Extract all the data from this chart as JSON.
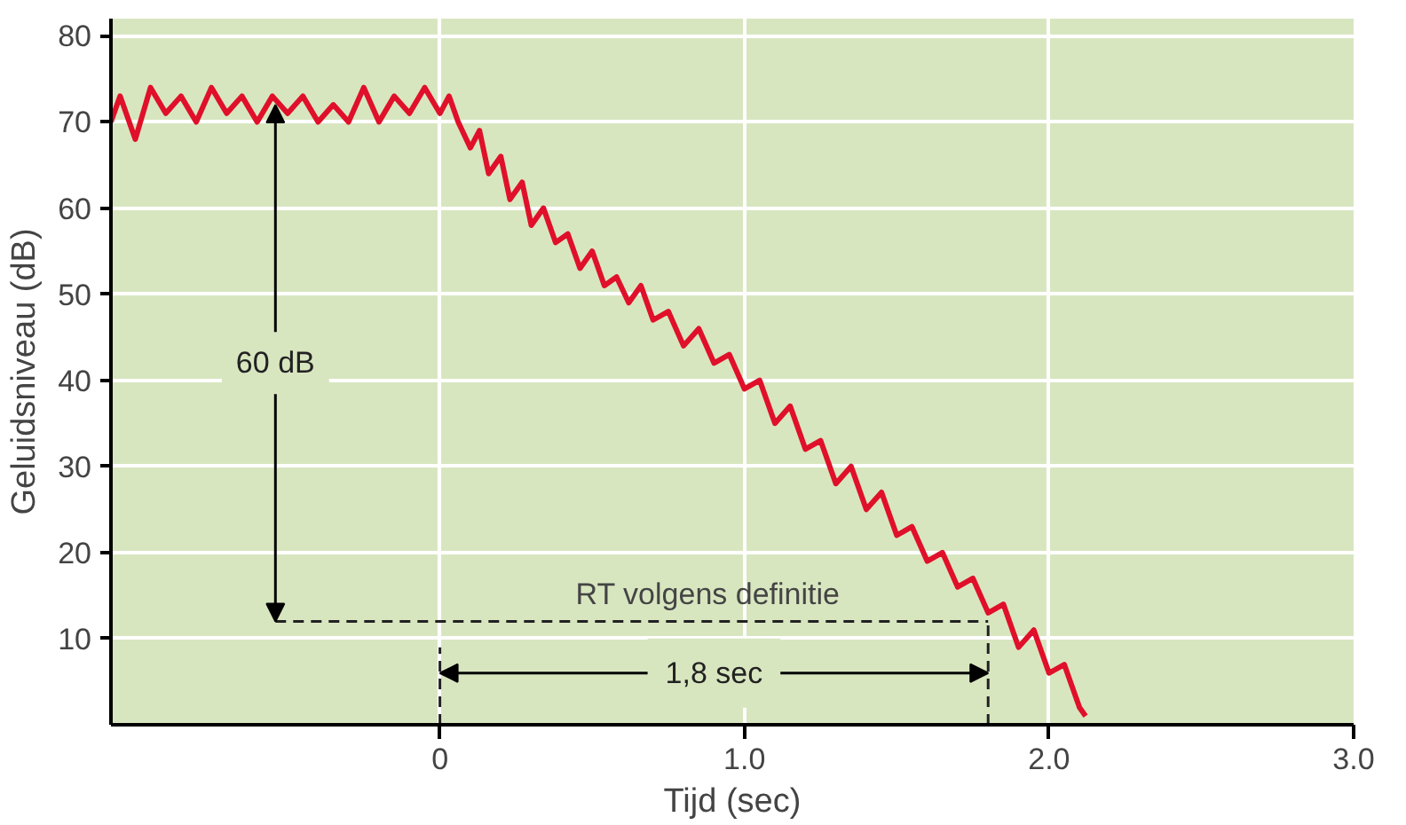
{
  "chart_data": {
    "type": "line",
    "xlabel": "Tijd (sec)",
    "ylabel": "Geluidsniveau (dB)",
    "xlim": [
      -1.08,
      3.0
    ],
    "ylim": [
      0,
      82
    ],
    "xticks": [
      {
        "value": 0,
        "label": "0"
      },
      {
        "value": 1,
        "label": "1.0"
      },
      {
        "value": 2,
        "label": "2.0"
      },
      {
        "value": 3,
        "label": "3.0"
      }
    ],
    "yticks": [
      10,
      20,
      30,
      40,
      50,
      60,
      70,
      80
    ],
    "grid": true,
    "series": [
      {
        "color": "#e0102a",
        "line_style": "solid",
        "x": [
          -1.08,
          -1.05,
          -1.0,
          -0.95,
          -0.9,
          -0.85,
          -0.8,
          -0.75,
          -0.7,
          -0.65,
          -0.6,
          -0.55,
          -0.5,
          -0.45,
          -0.4,
          -0.35,
          -0.3,
          -0.25,
          -0.2,
          -0.15,
          -0.1,
          -0.05,
          0,
          0.03,
          0.06,
          0.1,
          0.13,
          0.16,
          0.2,
          0.23,
          0.27,
          0.3,
          0.34,
          0.38,
          0.42,
          0.46,
          0.5,
          0.54,
          0.58,
          0.62,
          0.66,
          0.7,
          0.75,
          0.8,
          0.85,
          0.9,
          0.95,
          1.0,
          1.05,
          1.1,
          1.15,
          1.2,
          1.25,
          1.3,
          1.35,
          1.4,
          1.45,
          1.5,
          1.55,
          1.6,
          1.65,
          1.7,
          1.75,
          1.8,
          1.85,
          1.9,
          1.95,
          2.0,
          2.05,
          2.1,
          2.12
        ],
        "values": [
          70,
          73,
          68,
          74,
          71,
          73,
          70,
          74,
          71,
          73,
          70,
          73,
          71,
          73,
          70,
          72,
          70,
          74,
          70,
          73,
          71,
          74,
          71,
          73,
          70,
          67,
          69,
          64,
          66,
          61,
          63,
          58,
          60,
          56,
          57,
          53,
          55,
          51,
          52,
          49,
          51,
          47,
          48,
          44,
          46,
          42,
          43,
          39,
          40,
          35,
          37,
          32,
          33,
          28,
          30,
          25,
          27,
          22,
          23,
          19,
          20,
          16,
          17,
          13,
          14,
          9,
          11,
          6,
          7,
          2,
          1
        ]
      },
      {
        "color": "#222222",
        "line_style": "dashed",
        "x": [
          -0.54,
          1.8
        ],
        "values": [
          12,
          12
        ]
      },
      {
        "color": "#222222",
        "line_style": "dashed",
        "x": [
          0,
          0
        ],
        "values": [
          0,
          9
        ]
      },
      {
        "color": "#222222",
        "line_style": "dashed",
        "x": [
          1.8,
          1.8
        ],
        "values": [
          0,
          12
        ]
      }
    ],
    "annotations": [
      {
        "text": "60 dB",
        "x": -0.54,
        "y": 72
      },
      "RT volgens definitie",
      {
        "text": "1,8 sec",
        "x": 1.8,
        "y": 6
      }
    ]
  }
}
